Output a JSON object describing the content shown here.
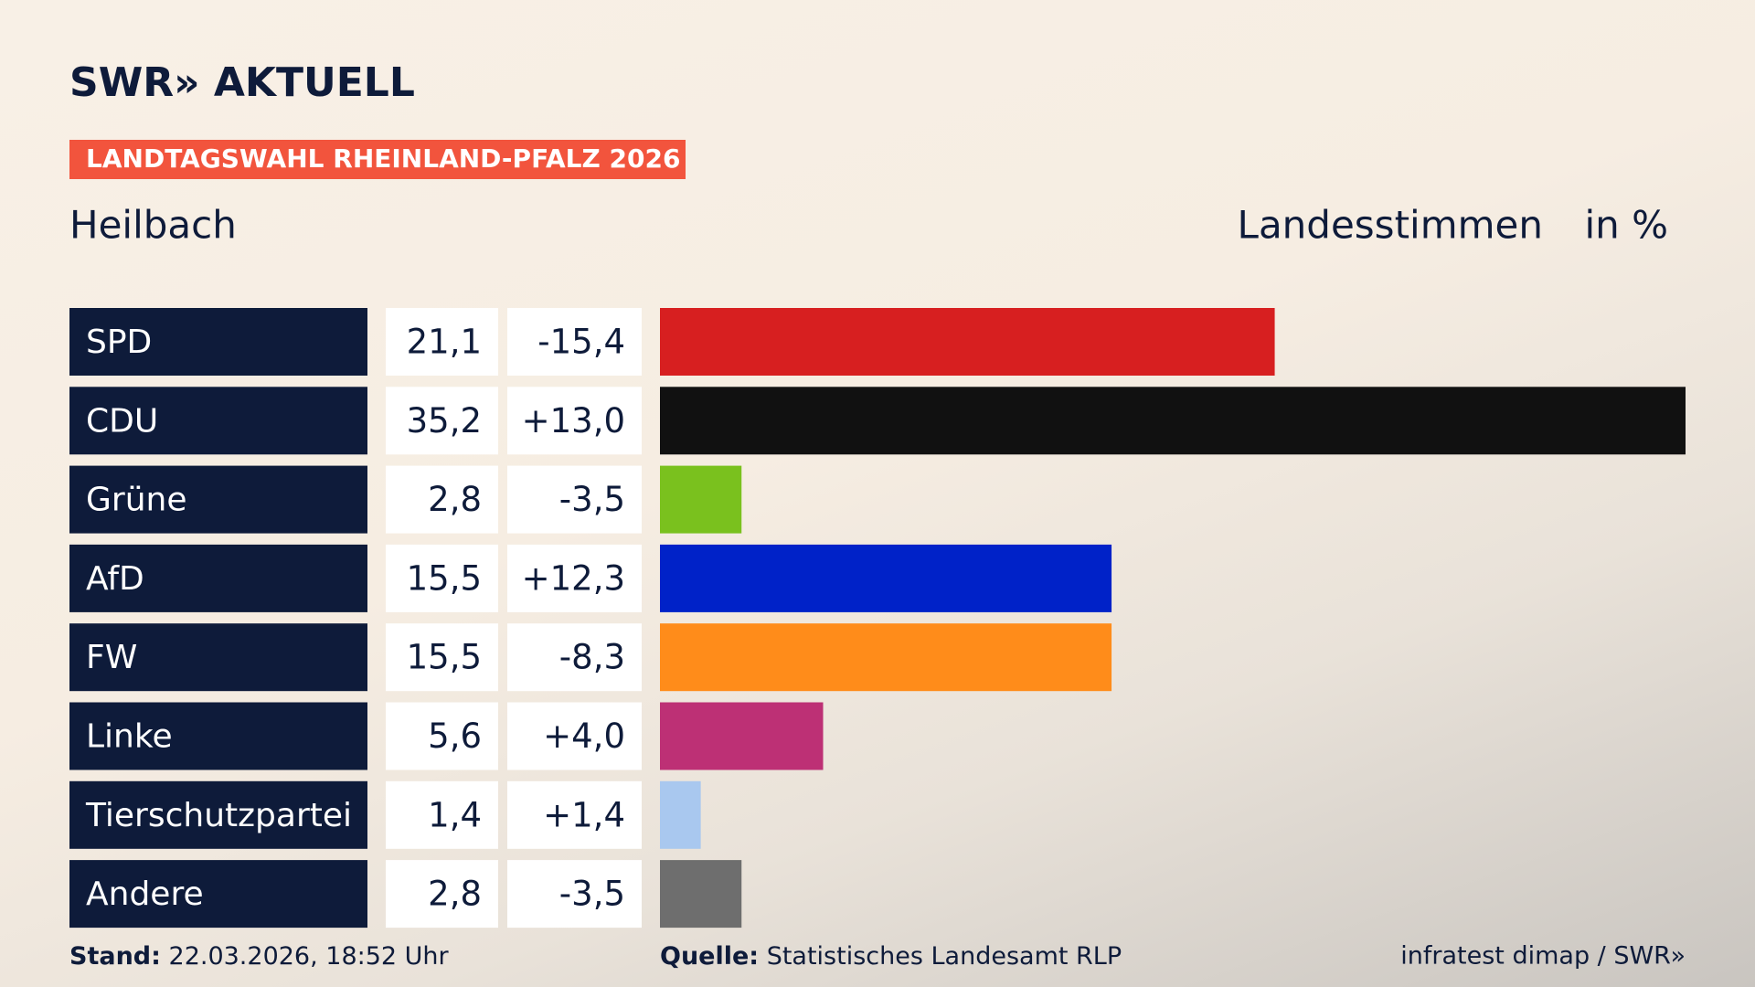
{
  "chart_data": {
    "type": "bar",
    "logo": "SWR» AKTUELL",
    "badge": "LANDTAGSWAHL RHEINLAND-PFALZ 2026",
    "title": "Heilbach",
    "measure": "Landesstimmen",
    "unit": "in %",
    "categories": [
      "SPD",
      "CDU",
      "Grüne",
      "AfD",
      "FW",
      "Linke",
      "Tierschutzpartei",
      "Andere"
    ],
    "values": [
      21.1,
      35.2,
      2.8,
      15.5,
      15.5,
      5.6,
      1.4,
      2.8
    ],
    "value_labels": [
      "21,1",
      "35,2",
      "2,8",
      "15,5",
      "15,5",
      "5,6",
      "1,4",
      "2,8"
    ],
    "changes": [
      "-15,4",
      "+13,0",
      "-3,5",
      "+12,3",
      "-8,3",
      "+4,0",
      "+1,4",
      "-3,5"
    ],
    "colors": [
      "#d71f20",
      "#111111",
      "#7ac11e",
      "#0022c8",
      "#ff8c1a",
      "#bd3075",
      "#a9c8ef",
      "#6e6e6e"
    ],
    "stand_label": "Stand:",
    "stand": "22.03.2026, 18:52 Uhr",
    "source_label": "Quelle:",
    "source": "Statistisches Landesamt RLP",
    "credit": "infratest dimap / SWR»"
  }
}
